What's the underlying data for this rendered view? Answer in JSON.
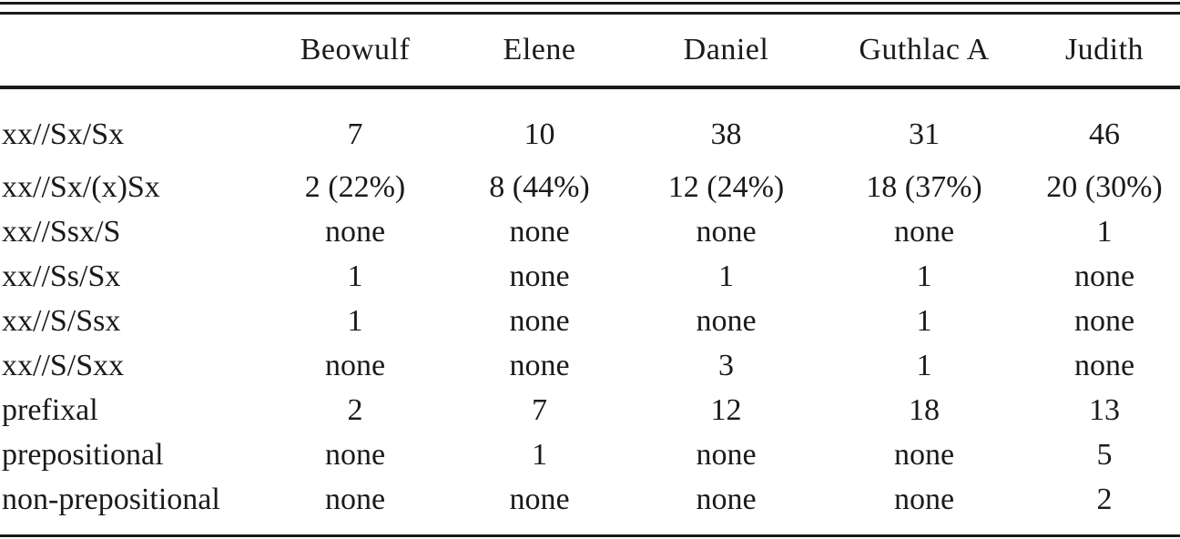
{
  "table": {
    "corner_label": "",
    "columns": [
      "Beowulf",
      "Elene",
      "Daniel",
      "Guthlac A",
      "Judith"
    ],
    "rows": [
      {
        "label": "xx//Sx/Sx",
        "values": [
          "7",
          "10",
          "38",
          "31",
          "46"
        ]
      },
      {
        "label": "xx//Sx/(x)Sx",
        "values": [
          "2 (22%)",
          "8 (44%)",
          "12 (24%)",
          "18 (37%)",
          "20 (30%)"
        ]
      },
      {
        "label": "xx//Ssx/S",
        "values": [
          "none",
          "none",
          "none",
          "none",
          "1"
        ]
      },
      {
        "label": "xx//Ss/Sx",
        "values": [
          "1",
          "none",
          "1",
          "1",
          "none"
        ]
      },
      {
        "label": "xx//S/Ssx",
        "values": [
          "1",
          "none",
          "none",
          "1",
          "none"
        ]
      },
      {
        "label": "xx//S/Sxx",
        "values": [
          "none",
          "none",
          "3",
          "1",
          "none"
        ]
      },
      {
        "label": "prefixal",
        "values": [
          "2",
          "7",
          "12",
          "18",
          "13"
        ]
      },
      {
        "label": "prepositional",
        "values": [
          "none",
          "1",
          "none",
          "none",
          "5"
        ]
      },
      {
        "label": "non-prepositional",
        "values": [
          "none",
          "none",
          "none",
          "none",
          "2"
        ]
      }
    ]
  },
  "colors": {
    "text": "#1a1a1a",
    "rule": "#1a1a1a",
    "background": "#ffffff"
  }
}
